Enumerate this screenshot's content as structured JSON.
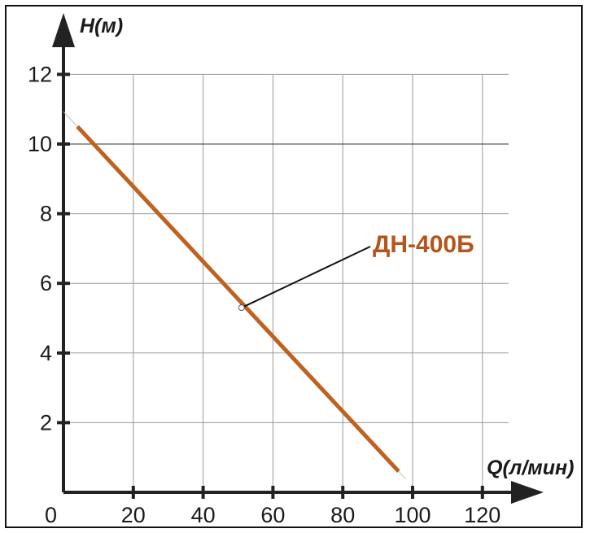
{
  "chart_data": {
    "type": "line",
    "xlabel": "Q(л/мин)",
    "ylabel": "H(м)",
    "xlim": [
      0,
      120
    ],
    "ylim": [
      0,
      12
    ],
    "x_ticks": [
      "20",
      "40",
      "60",
      "80",
      "100",
      "120"
    ],
    "y_ticks": [
      "2",
      "4",
      "6",
      "8",
      "10",
      "12"
    ],
    "origin_label": "0",
    "grid": true,
    "series": [
      {
        "name": "ДН-400Б",
        "color": "#c0621f",
        "x": [
          4,
          96
        ],
        "y": [
          10.5,
          0.6
        ]
      }
    ],
    "annotation": {
      "text": "ДН-400Б",
      "point": {
        "x": 51,
        "y": 5.3
      }
    }
  }
}
